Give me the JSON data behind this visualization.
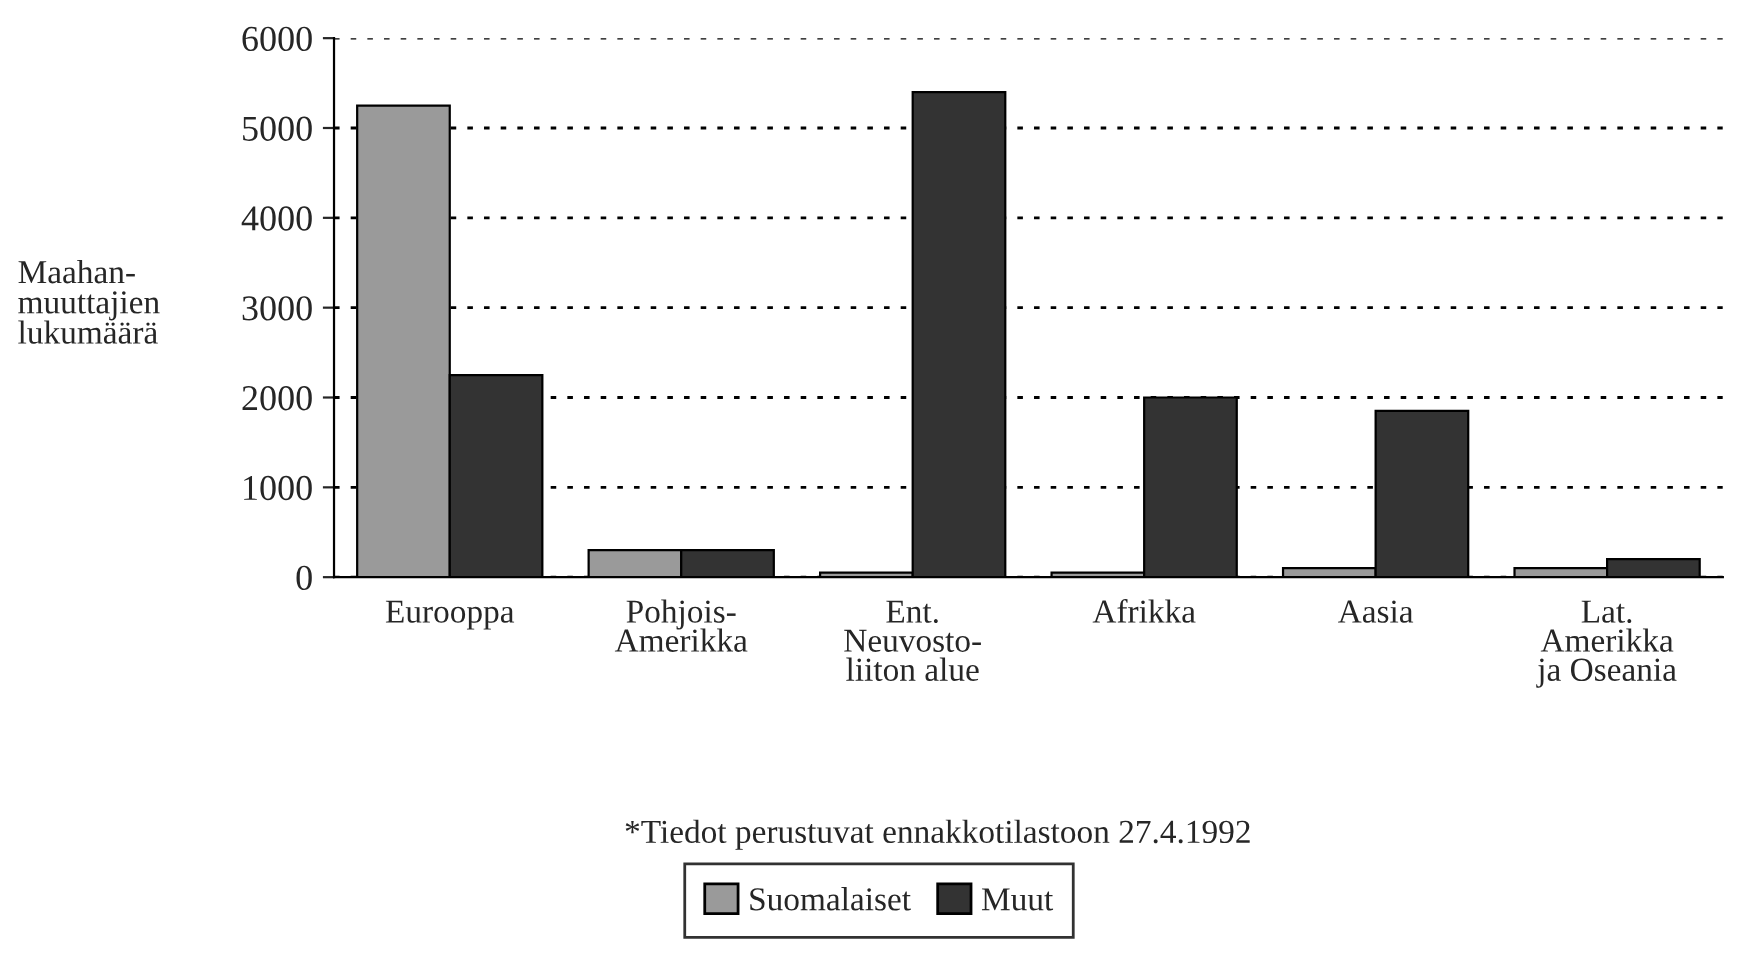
{
  "chart_data": {
    "type": "bar",
    "ylabel": "Maahan-\nmuuttajien\nlukumäärä",
    "categories": [
      "Eurooppa",
      "Pohjois-\nAmerikka",
      "Ent.\nNeuvosto-\nliiton alue",
      "Afrikka",
      "Aasia",
      "Lat.\nAmerikka\nja Oseania"
    ],
    "series": [
      {
        "name": "Suomalaiset",
        "color": "#9a9a9a",
        "values": [
          5250,
          300,
          50,
          50,
          100,
          100
        ]
      },
      {
        "name": "Muut",
        "color": "#333333",
        "values": [
          2250,
          300,
          5400,
          2000,
          1850,
          200
        ]
      }
    ],
    "ylim": [
      0,
      6000
    ],
    "yticks": [
      0,
      1000,
      2000,
      3000,
      4000,
      5000,
      6000
    ],
    "grid": "y",
    "legend": "bottom",
    "annotations": [
      "*Tiedot perustuvat ennakkotilastoon 27.4.1992"
    ]
  }
}
